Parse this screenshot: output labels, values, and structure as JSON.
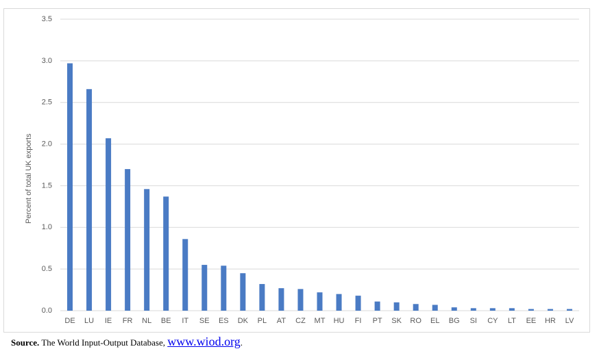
{
  "chart_data": {
    "type": "bar",
    "y_label": "Percent of total UK exports",
    "categories": [
      "DE",
      "LU",
      "IE",
      "FR",
      "NL",
      "BE",
      "IT",
      "SE",
      "ES",
      "DK",
      "PL",
      "AT",
      "CZ",
      "MT",
      "HU",
      "FI",
      "PT",
      "SK",
      "RO",
      "EL",
      "BG",
      "SI",
      "CY",
      "LT",
      "EE",
      "HR",
      "LV"
    ],
    "values": [
      2.97,
      2.66,
      2.07,
      1.7,
      1.46,
      1.37,
      0.86,
      0.55,
      0.54,
      0.45,
      0.32,
      0.27,
      0.26,
      0.22,
      0.2,
      0.18,
      0.11,
      0.1,
      0.08,
      0.07,
      0.04,
      0.03,
      0.03,
      0.03,
      0.02,
      0.02,
      0.02
    ],
    "color": "#4a7bc4",
    "ylim": [
      0,
      3.5
    ],
    "yticks": [
      {
        "value": 0,
        "label": "0.0"
      },
      0.5,
      {
        "value": 1,
        "label": "1.0"
      },
      1.5,
      {
        "value": 2,
        "label": "2.0"
      },
      2.5,
      {
        "value": 3,
        "label": "3.0"
      },
      3.5
    ],
    "grid": true
  },
  "source": {
    "label": "Source.",
    "text": "The World Input-Output Database,",
    "link": "www.wiod.org",
    "end": "."
  }
}
